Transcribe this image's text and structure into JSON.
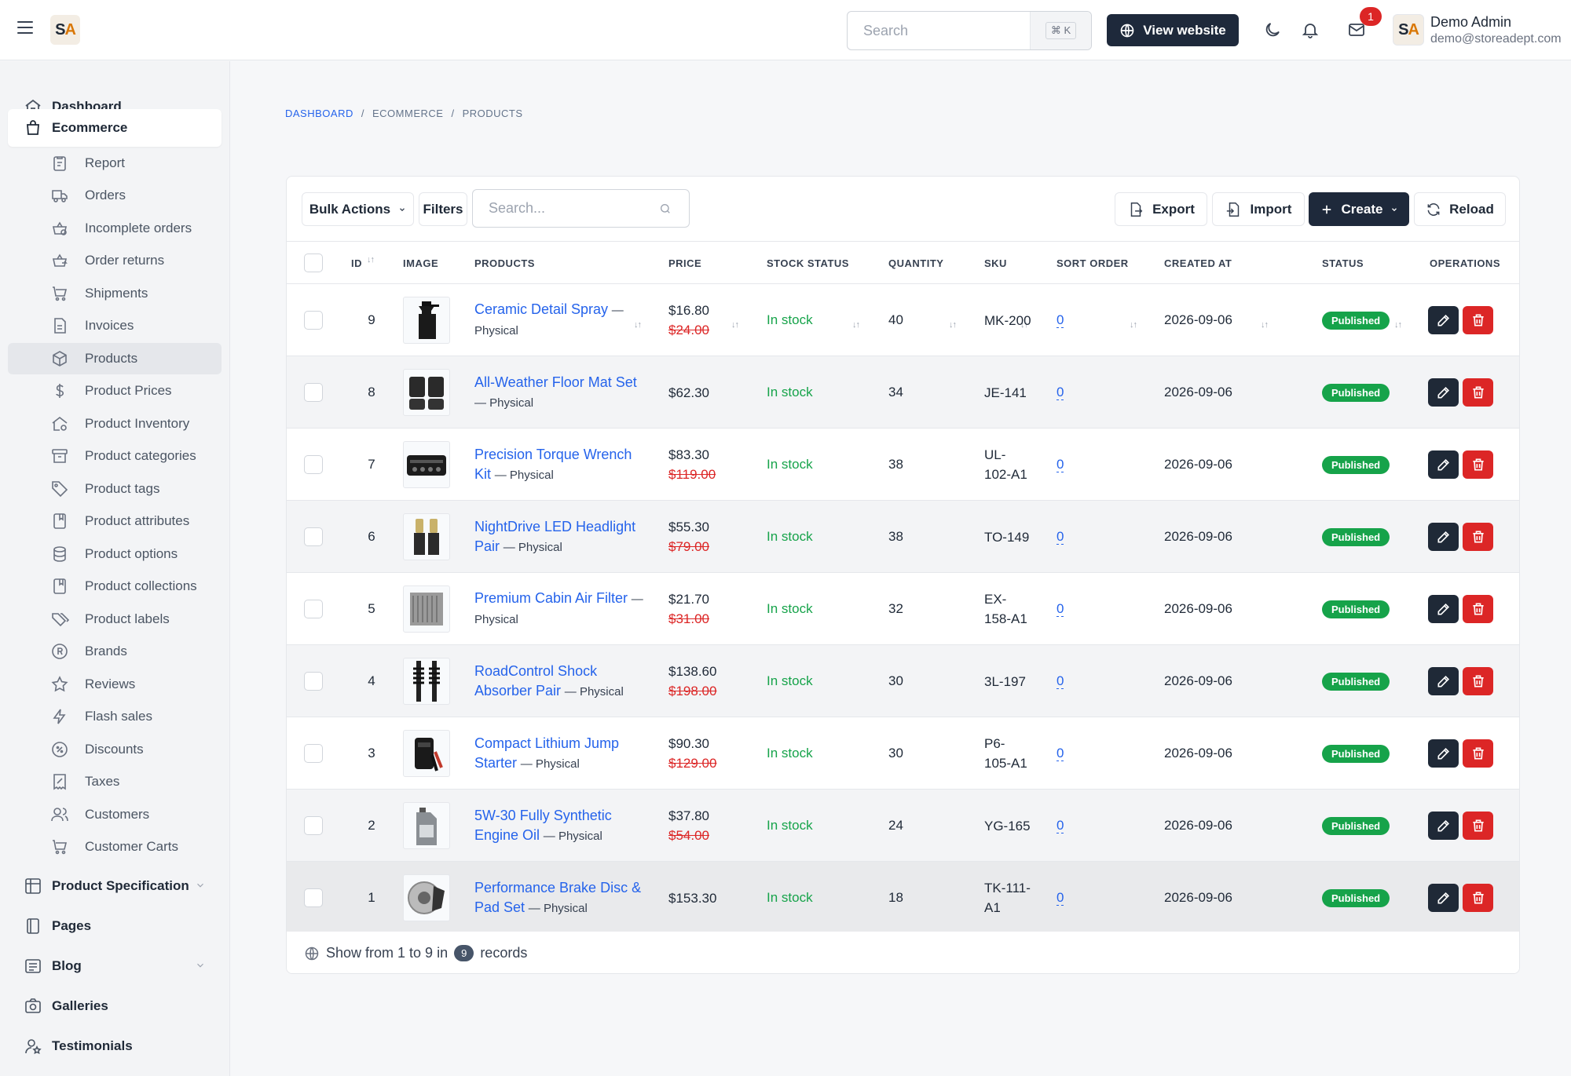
{
  "header": {
    "logo_text_s": "S",
    "logo_text_a": "A",
    "search_placeholder": "Search",
    "search_shortcut": "⌘ K",
    "view_website_label": "View website",
    "notification_count": "1",
    "user_name": "Demo Admin",
    "user_email": "demo@storeadept.com"
  },
  "sidebar": {
    "main_items": [
      {
        "label": "Dashboard",
        "icon": "home-icon"
      },
      {
        "label": "Ecommerce",
        "icon": "shopping-bag-icon"
      },
      {
        "label": "Product Specification",
        "icon": "grid-icon"
      },
      {
        "label": "Pages",
        "icon": "book-icon"
      },
      {
        "label": "Blog",
        "icon": "list-icon"
      },
      {
        "label": "Galleries",
        "icon": "camera-icon"
      },
      {
        "label": "Testimonials",
        "icon": "user-star-icon"
      }
    ],
    "sub_items": [
      {
        "label": "Report",
        "icon": "report-icon"
      },
      {
        "label": "Orders",
        "icon": "truck-icon"
      },
      {
        "label": "Incomplete orders",
        "icon": "basket-icon"
      },
      {
        "label": "Order returns",
        "icon": "basket-return-icon"
      },
      {
        "label": "Shipments",
        "icon": "cart-icon"
      },
      {
        "label": "Invoices",
        "icon": "invoice-icon"
      },
      {
        "label": "Products",
        "icon": "package-icon"
      },
      {
        "label": "Product Prices",
        "icon": "dollar-icon"
      },
      {
        "label": "Product Inventory",
        "icon": "home-cog-icon"
      },
      {
        "label": "Product categories",
        "icon": "archive-icon"
      },
      {
        "label": "Product tags",
        "icon": "tag-icon"
      },
      {
        "label": "Product attributes",
        "icon": "album-icon"
      },
      {
        "label": "Product options",
        "icon": "database-icon"
      },
      {
        "label": "Product collections",
        "icon": "album-icon"
      },
      {
        "label": "Product labels",
        "icon": "tags-icon"
      },
      {
        "label": "Brands",
        "icon": "registered-icon"
      },
      {
        "label": "Reviews",
        "icon": "star-icon"
      },
      {
        "label": "Flash sales",
        "icon": "bolt-icon"
      },
      {
        "label": "Discounts",
        "icon": "discount-icon"
      },
      {
        "label": "Taxes",
        "icon": "receipt-tax-icon"
      },
      {
        "label": "Customers",
        "icon": "users-icon"
      },
      {
        "label": "Customer Carts",
        "icon": "shopping-cart-icon"
      }
    ]
  },
  "breadcrumb": [
    "DASHBOARD",
    "ECOMMERCE",
    "PRODUCTS"
  ],
  "toolbar": {
    "bulk_actions": "Bulk Actions",
    "filters": "Filters",
    "search_placeholder": "Search...",
    "export": "Export",
    "import": "Import",
    "create": "Create",
    "reload": "Reload"
  },
  "columns": [
    "ID",
    "IMAGE",
    "PRODUCTS",
    "PRICE",
    "STOCK STATUS",
    "QUANTITY",
    "SKU",
    "SORT ORDER",
    "CREATED AT",
    "STATUS",
    "OPERATIONS"
  ],
  "rows": [
    {
      "id": "9",
      "image": "spray-bottle",
      "name": "Ceramic Detail Spray",
      "type": "— Physical",
      "price": "$16.80",
      "old_price": "$24.00",
      "stock": "In stock",
      "qty": "40",
      "sku": "MK-200",
      "sort": "0",
      "created": "2026-09-06",
      "status": "Published"
    },
    {
      "id": "8",
      "image": "floor-mats",
      "name": "All-Weather Floor Mat Set",
      "type": "— Physical",
      "price": "$62.30",
      "old_price": "",
      "stock": "In stock",
      "qty": "34",
      "sku": "JE-141",
      "sort": "0",
      "created": "2026-09-06",
      "status": "Published"
    },
    {
      "id": "7",
      "image": "tool-case",
      "name": "Precision Torque Wrench Kit",
      "type": "— Physical",
      "price": "$83.30",
      "old_price": "$119.00",
      "stock": "In stock",
      "qty": "38",
      "sku": "UL-102-A1",
      "sort": "0",
      "created": "2026-09-06",
      "status": "Published"
    },
    {
      "id": "6",
      "image": "led-bulbs",
      "name": "NightDrive LED Headlight Pair",
      "type": "— Physical",
      "price": "$55.30",
      "old_price": "$79.00",
      "stock": "In stock",
      "qty": "38",
      "sku": "TO-149",
      "sort": "0",
      "created": "2026-09-06",
      "status": "Published"
    },
    {
      "id": "5",
      "image": "air-filter",
      "name": "Premium Cabin Air Filter",
      "type": "— Physical",
      "price": "$21.70",
      "old_price": "$31.00",
      "stock": "In stock",
      "qty": "32",
      "sku": "EX-158-A1",
      "sort": "0",
      "created": "2026-09-06",
      "status": "Published"
    },
    {
      "id": "4",
      "image": "shock-absorbers",
      "name": "RoadControl Shock Absorber Pair",
      "type": "— Physical",
      "price": "$138.60",
      "old_price": "$198.00",
      "stock": "In stock",
      "qty": "30",
      "sku": "3L-197",
      "sort": "0",
      "created": "2026-09-06",
      "status": "Published"
    },
    {
      "id": "3",
      "image": "jump-starter",
      "name": "Compact Lithium Jump Starter",
      "type": "— Physical",
      "price": "$90.30",
      "old_price": "$129.00",
      "stock": "In stock",
      "qty": "30",
      "sku": "P6-105-A1",
      "sort": "0",
      "created": "2026-09-06",
      "status": "Published"
    },
    {
      "id": "2",
      "image": "oil-jug",
      "name": "5W-30 Fully Synthetic Engine Oil",
      "type": "— Physical",
      "price": "$37.80",
      "old_price": "$54.00",
      "stock": "In stock",
      "qty": "24",
      "sku": "YG-165",
      "sort": "0",
      "created": "2026-09-06",
      "status": "Published"
    },
    {
      "id": "1",
      "image": "brake-disc",
      "name": "Performance Brake Disc & Pad Set",
      "type": "— Physical",
      "price": "$153.30",
      "old_price": "",
      "stock": "In stock",
      "qty": "18",
      "sku": "TK-111-A1",
      "sort": "0",
      "created": "2026-09-06",
      "status": "Published"
    }
  ],
  "footer": {
    "prefix": "Show from 1 to 9 in",
    "count": "9",
    "suffix": "records"
  },
  "colors": {
    "accent_link": "#2563eb",
    "published": "#16a34a",
    "danger": "#dc2626",
    "dark": "#1e293b"
  }
}
